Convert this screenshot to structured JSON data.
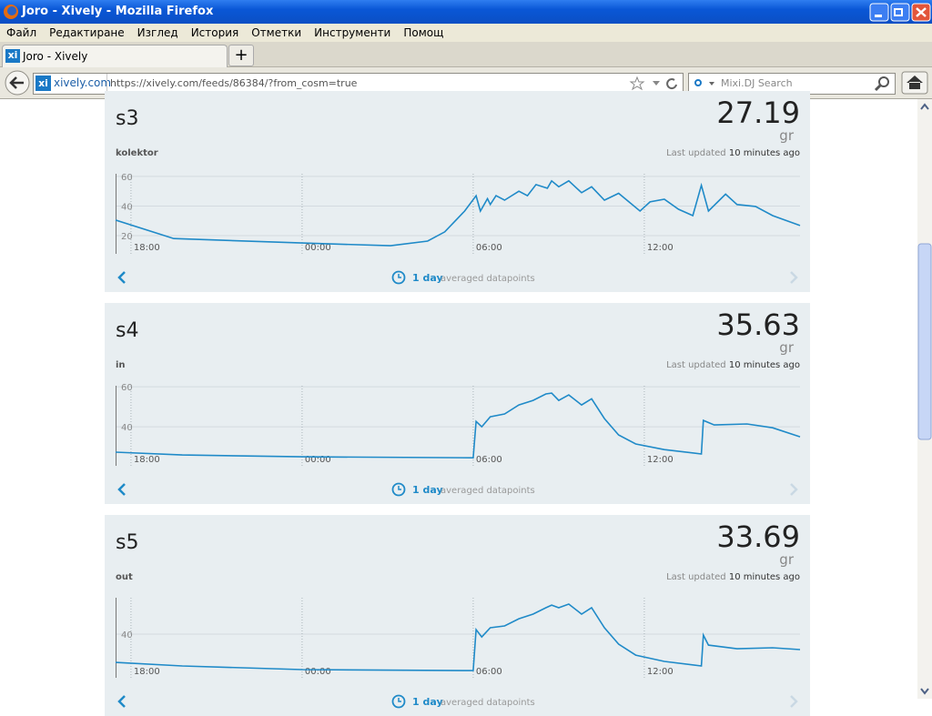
{
  "window": {
    "title": "Joro - Xively - Mozilla Firefox"
  },
  "menu": [
    "Файл",
    "Редактиране",
    "Изглед",
    "История",
    "Отметки",
    "Инструменти",
    "Помощ"
  ],
  "tab": {
    "title": "Joro - Xively"
  },
  "address_bar": {
    "site": "xively.com",
    "url": "https://xively.com/feeds/86384/?from_cosm=true"
  },
  "search": {
    "placeholder": "Mixi.DJ Search"
  },
  "channels": [
    {
      "name": "s3",
      "value": 27.19,
      "unit": "gr",
      "tag": "kolektor",
      "updated_prefix": "Last updated",
      "updated_time": "10 minutes ago",
      "period": "1 day",
      "period_note": "averaged datapoints",
      "chart": {
        "type": "line",
        "color": "#1f8ac8",
        "x": [
          17.46,
          19.5,
          24,
          27.1,
          28.4,
          29,
          29.7,
          30.1,
          30.25,
          30.5,
          30.6,
          30.8,
          31.1,
          31.6,
          31.9,
          32.2,
          32.6,
          32.75,
          33,
          33.35,
          33.8,
          34.15,
          34.6,
          35.1,
          35.85,
          36.2,
          36.7,
          37.2,
          37.7,
          38,
          38.25,
          38.85,
          39.25,
          39.9,
          40.5,
          41.46
        ],
        "values": [
          30.5,
          18,
          15,
          13.2,
          16.3,
          22.5,
          36.6,
          47,
          36.6,
          45,
          41,
          47,
          44,
          50,
          47,
          54.5,
          52,
          57,
          53,
          57,
          49,
          53,
          44,
          48.6,
          36.6,
          42.8,
          44.6,
          37.8,
          33.5,
          54,
          36.6,
          48,
          41,
          39.7,
          33.5,
          26.8
        ],
        "xlim": [
          17.46,
          41.46
        ],
        "ylim": [
          7.7,
          61.8
        ],
        "xticks": [
          {
            "value": 18,
            "label": "18:00"
          },
          {
            "value": 24,
            "label": "00:00"
          },
          {
            "value": 30,
            "label": "06:00"
          },
          {
            "value": 36,
            "label": "12:00"
          }
        ],
        "yticks": [
          20,
          40,
          60
        ]
      }
    },
    {
      "name": "s4",
      "value": 35.63,
      "unit": "gr",
      "tag": "in",
      "updated_prefix": "Last updated",
      "updated_time": "10 minutes ago",
      "period": "1 day",
      "period_note": "averaged datapoints",
      "chart": {
        "type": "line",
        "color": "#1f8ac8",
        "x": [
          17.46,
          19.8,
          24,
          30,
          30.1,
          30.3,
          30.6,
          31.1,
          31.6,
          32.1,
          32.55,
          32.75,
          33,
          33.35,
          33.8,
          34.15,
          34.6,
          35.1,
          35.7,
          36.7,
          38,
          38.07,
          38.45,
          39.6,
          40.5,
          41.46
        ],
        "values": [
          27.3,
          25.9,
          25,
          24.5,
          42.7,
          40,
          45,
          46.4,
          50.9,
          53.2,
          56.4,
          56.8,
          53.2,
          55.9,
          50.9,
          54,
          44.1,
          35.9,
          31.4,
          28.6,
          26.4,
          43.2,
          40.9,
          41.4,
          39.5,
          35
        ],
        "xlim": [
          17.46,
          41.46
        ],
        "ylim": [
          20.5,
          60.5
        ],
        "xticks": [
          {
            "value": 18,
            "label": "18:00"
          },
          {
            "value": 24,
            "label": "00:00"
          },
          {
            "value": 30,
            "label": "06:00"
          },
          {
            "value": 36,
            "label": "12:00"
          }
        ],
        "yticks": [
          40,
          60
        ]
      }
    },
    {
      "name": "s5",
      "value": 33.69,
      "unit": "gr",
      "tag": "out",
      "updated_prefix": "Last updated",
      "updated_time": "10 minutes ago",
      "period": "1 day",
      "period_note": "averaged datapoints",
      "chart": {
        "type": "line",
        "color": "#1f8ac8",
        "x": [
          17.46,
          19.8,
          24,
          30,
          30.1,
          30.3,
          30.6,
          31.1,
          31.6,
          32.1,
          32.55,
          32.75,
          33,
          33.35,
          33.8,
          34.15,
          34.6,
          35.1,
          35.7,
          36.7,
          38,
          38.07,
          38.25,
          39.25,
          40.5,
          41.46
        ],
        "values": [
          25.9,
          24.1,
          22.3,
          21.8,
          42.3,
          38.6,
          43.2,
          44.1,
          47.7,
          50,
          53.2,
          54.5,
          53.2,
          55,
          50,
          53.2,
          43.2,
          35,
          29.5,
          26.4,
          24.1,
          39.5,
          34.5,
          32.7,
          33.2,
          32.3
        ],
        "xlim": [
          17.46,
          41.46
        ],
        "ylim": [
          18.2,
          58.2
        ],
        "xticks": [
          {
            "value": 18,
            "label": "18:00"
          },
          {
            "value": 24,
            "label": "00:00"
          },
          {
            "value": 30,
            "label": "06:00"
          },
          {
            "value": 36,
            "label": "12:00"
          }
        ],
        "yticks": [
          40
        ]
      }
    }
  ]
}
